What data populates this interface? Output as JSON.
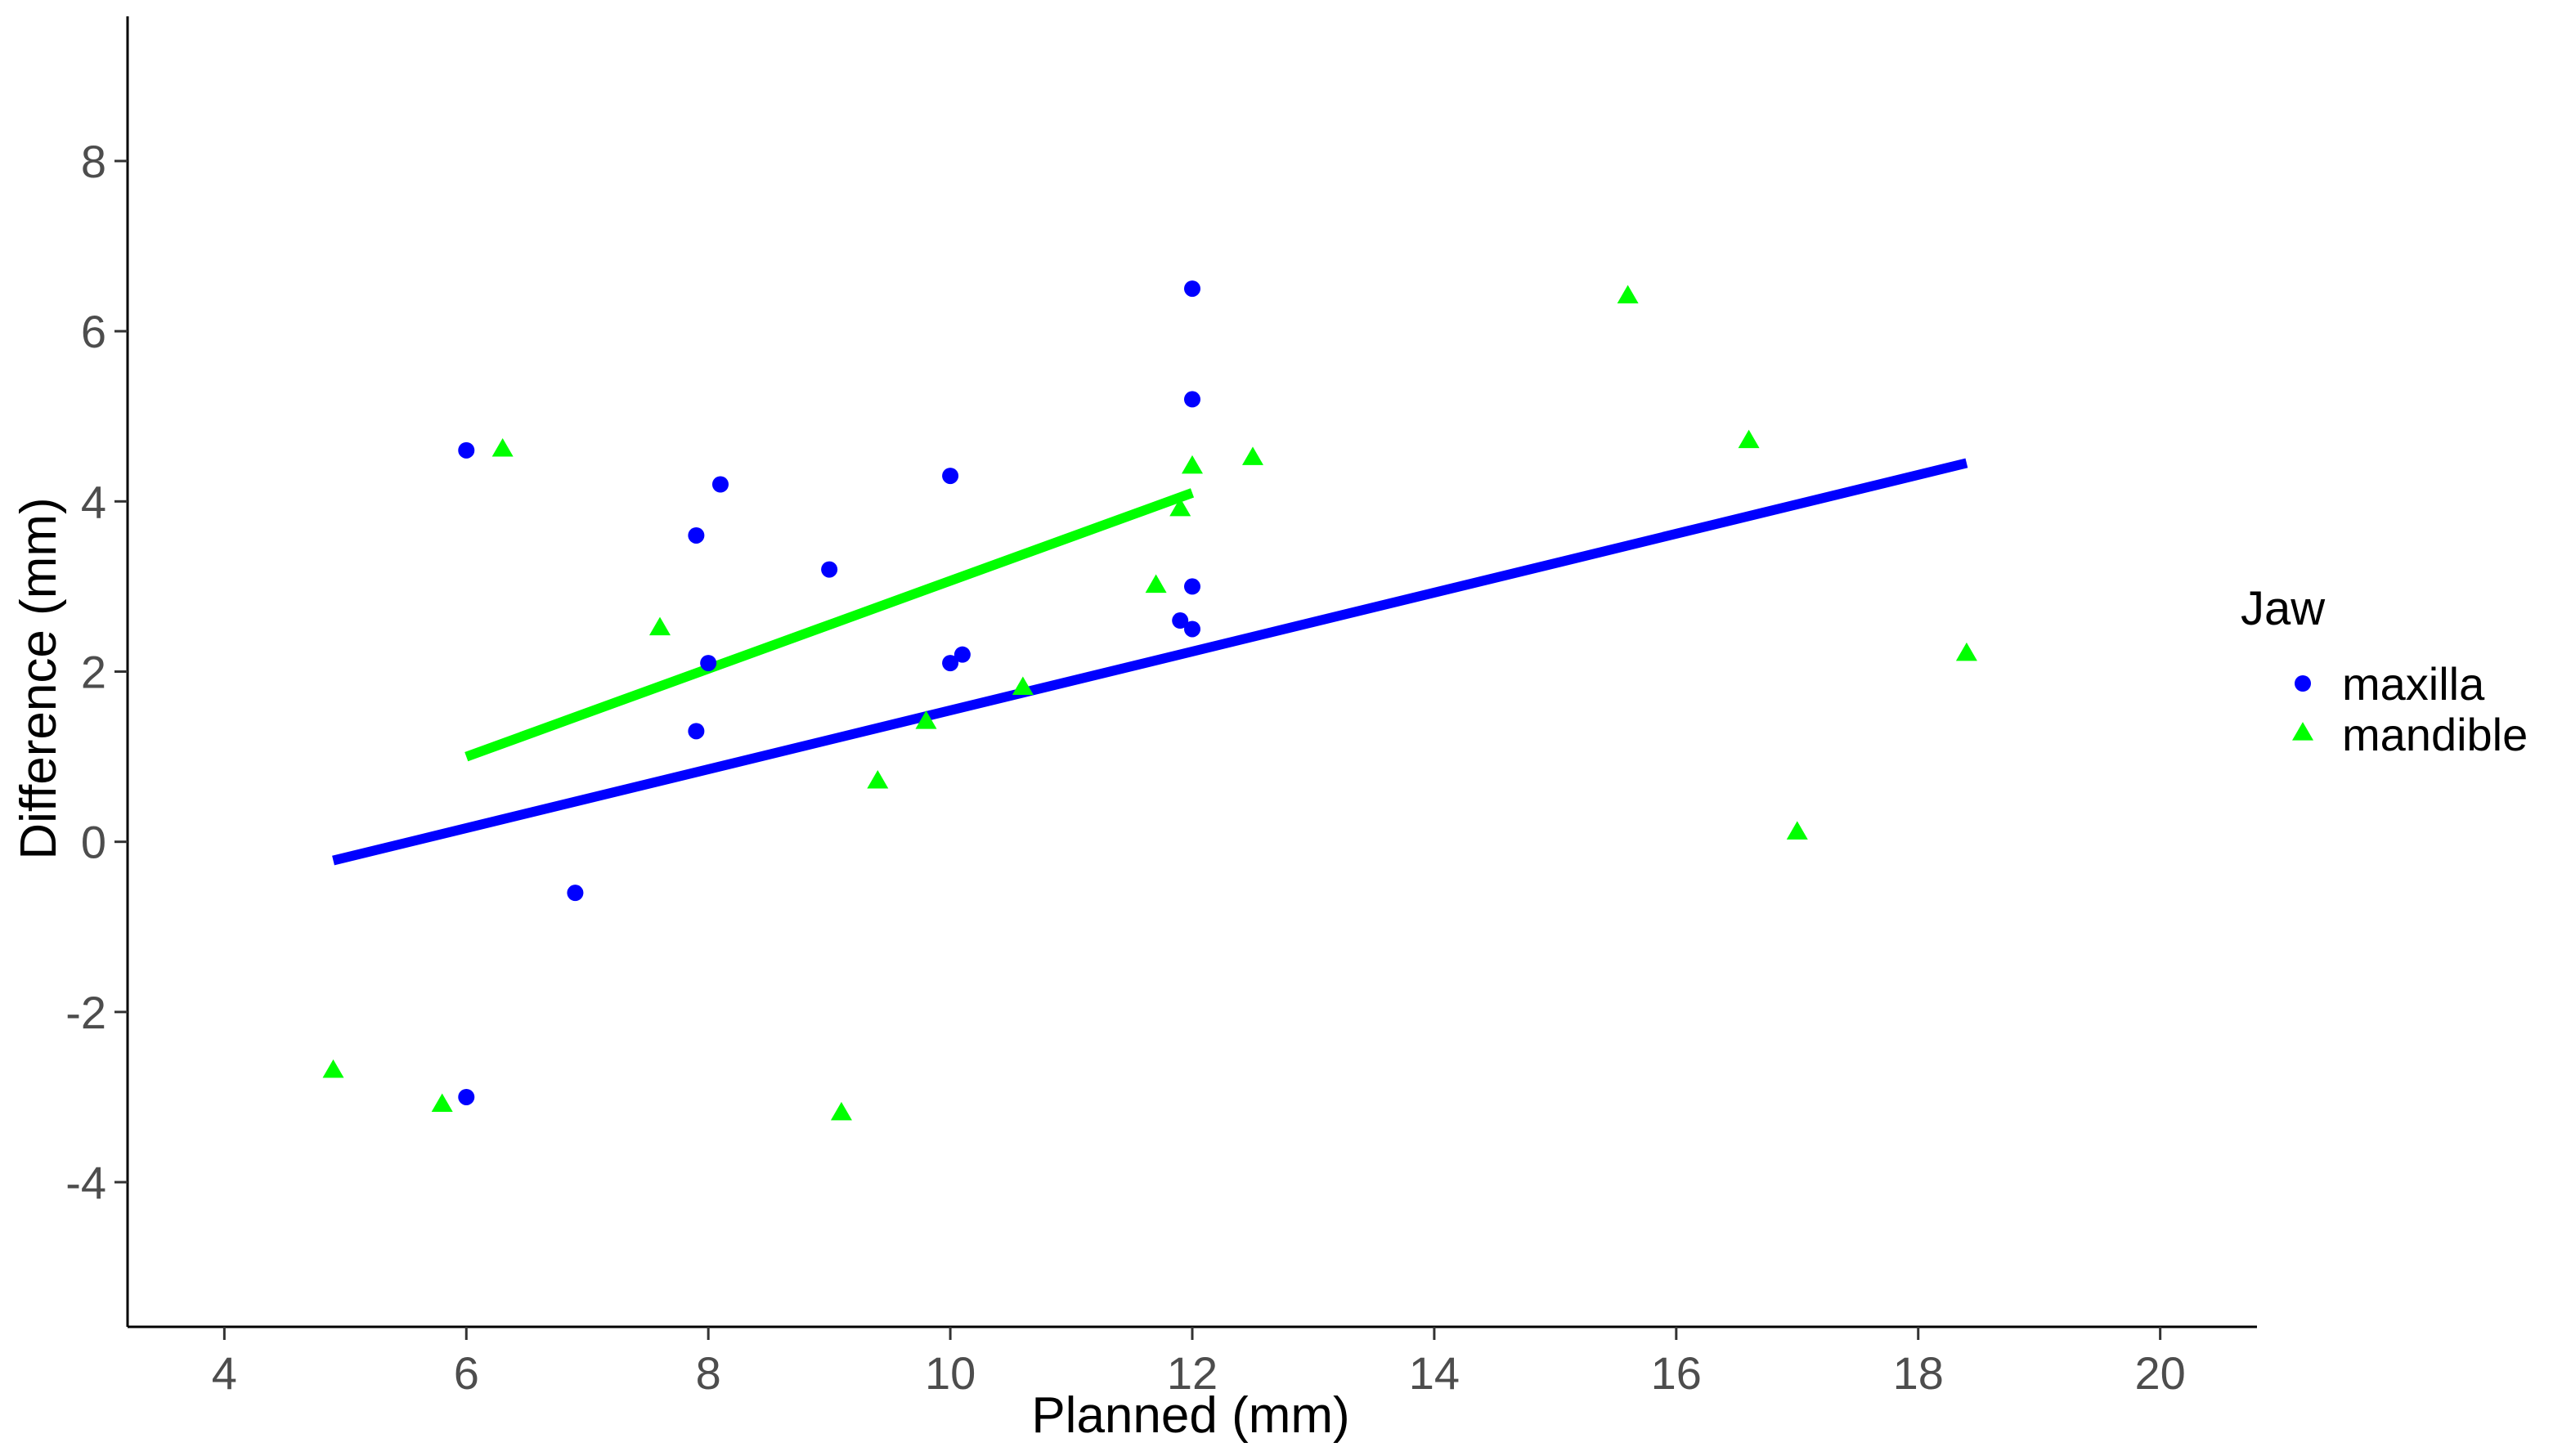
{
  "chart_data": {
    "type": "scatter",
    "xlabel": "Planned (mm)",
    "ylabel": "Difference (mm)",
    "xlim": [
      3.2,
      20.8
    ],
    "ylim": [
      -5.7,
      9.7
    ],
    "x_ticks": [
      "4",
      "6",
      "8",
      "10",
      "12",
      "14",
      "16",
      "18",
      "20"
    ],
    "x_tick_values": [
      4,
      6,
      8,
      10,
      12,
      14,
      16,
      18,
      20
    ],
    "y_ticks": [
      "-4",
      "-2",
      "0",
      "2",
      "4",
      "6",
      "8"
    ],
    "y_tick_values": [
      -4,
      -2,
      0,
      2,
      4,
      6,
      8
    ],
    "grid": false,
    "legend": {
      "title": "Jaw",
      "placement": "right"
    },
    "series": [
      {
        "name": "maxilla",
        "color": "#0000ff",
        "marker": "circle",
        "points": [
          {
            "x": 6.0,
            "y": 4.6
          },
          {
            "x": 6.0,
            "y": -3.0
          },
          {
            "x": 6.9,
            "y": -0.6
          },
          {
            "x": 7.9,
            "y": 3.6
          },
          {
            "x": 7.9,
            "y": 1.3
          },
          {
            "x": 8.0,
            "y": 2.1
          },
          {
            "x": 8.1,
            "y": 4.2
          },
          {
            "x": 9.0,
            "y": 3.2
          },
          {
            "x": 10.0,
            "y": 4.3
          },
          {
            "x": 10.0,
            "y": 2.1
          },
          {
            "x": 10.1,
            "y": 2.2
          },
          {
            "x": 11.9,
            "y": 2.6
          },
          {
            "x": 12.0,
            "y": 6.5
          },
          {
            "x": 12.0,
            "y": 5.2
          },
          {
            "x": 12.0,
            "y": 3.0
          },
          {
            "x": 12.0,
            "y": 2.5
          }
        ],
        "fit": {
          "x": [
            4.9,
            18.4
          ],
          "y": [
            -0.22,
            4.45
          ]
        }
      },
      {
        "name": "mandible",
        "color": "#00ff00",
        "marker": "triangle",
        "points": [
          {
            "x": 4.9,
            "y": -2.7
          },
          {
            "x": 5.8,
            "y": -3.1
          },
          {
            "x": 6.3,
            "y": 4.6
          },
          {
            "x": 7.6,
            "y": 2.5
          },
          {
            "x": 9.1,
            "y": -3.2
          },
          {
            "x": 9.4,
            "y": 0.7
          },
          {
            "x": 9.8,
            "y": 1.4
          },
          {
            "x": 10.6,
            "y": 1.8
          },
          {
            "x": 11.7,
            "y": 3.0
          },
          {
            "x": 11.9,
            "y": 3.9
          },
          {
            "x": 12.0,
            "y": 4.4
          },
          {
            "x": 12.5,
            "y": 4.5
          },
          {
            "x": 15.6,
            "y": 6.4
          },
          {
            "x": 16.6,
            "y": 4.7
          },
          {
            "x": 17.0,
            "y": 0.1
          },
          {
            "x": 18.4,
            "y": 2.2
          }
        ],
        "fit": {
          "x": [
            6.0,
            12.0
          ],
          "y": [
            1.0,
            4.1
          ]
        }
      }
    ]
  }
}
